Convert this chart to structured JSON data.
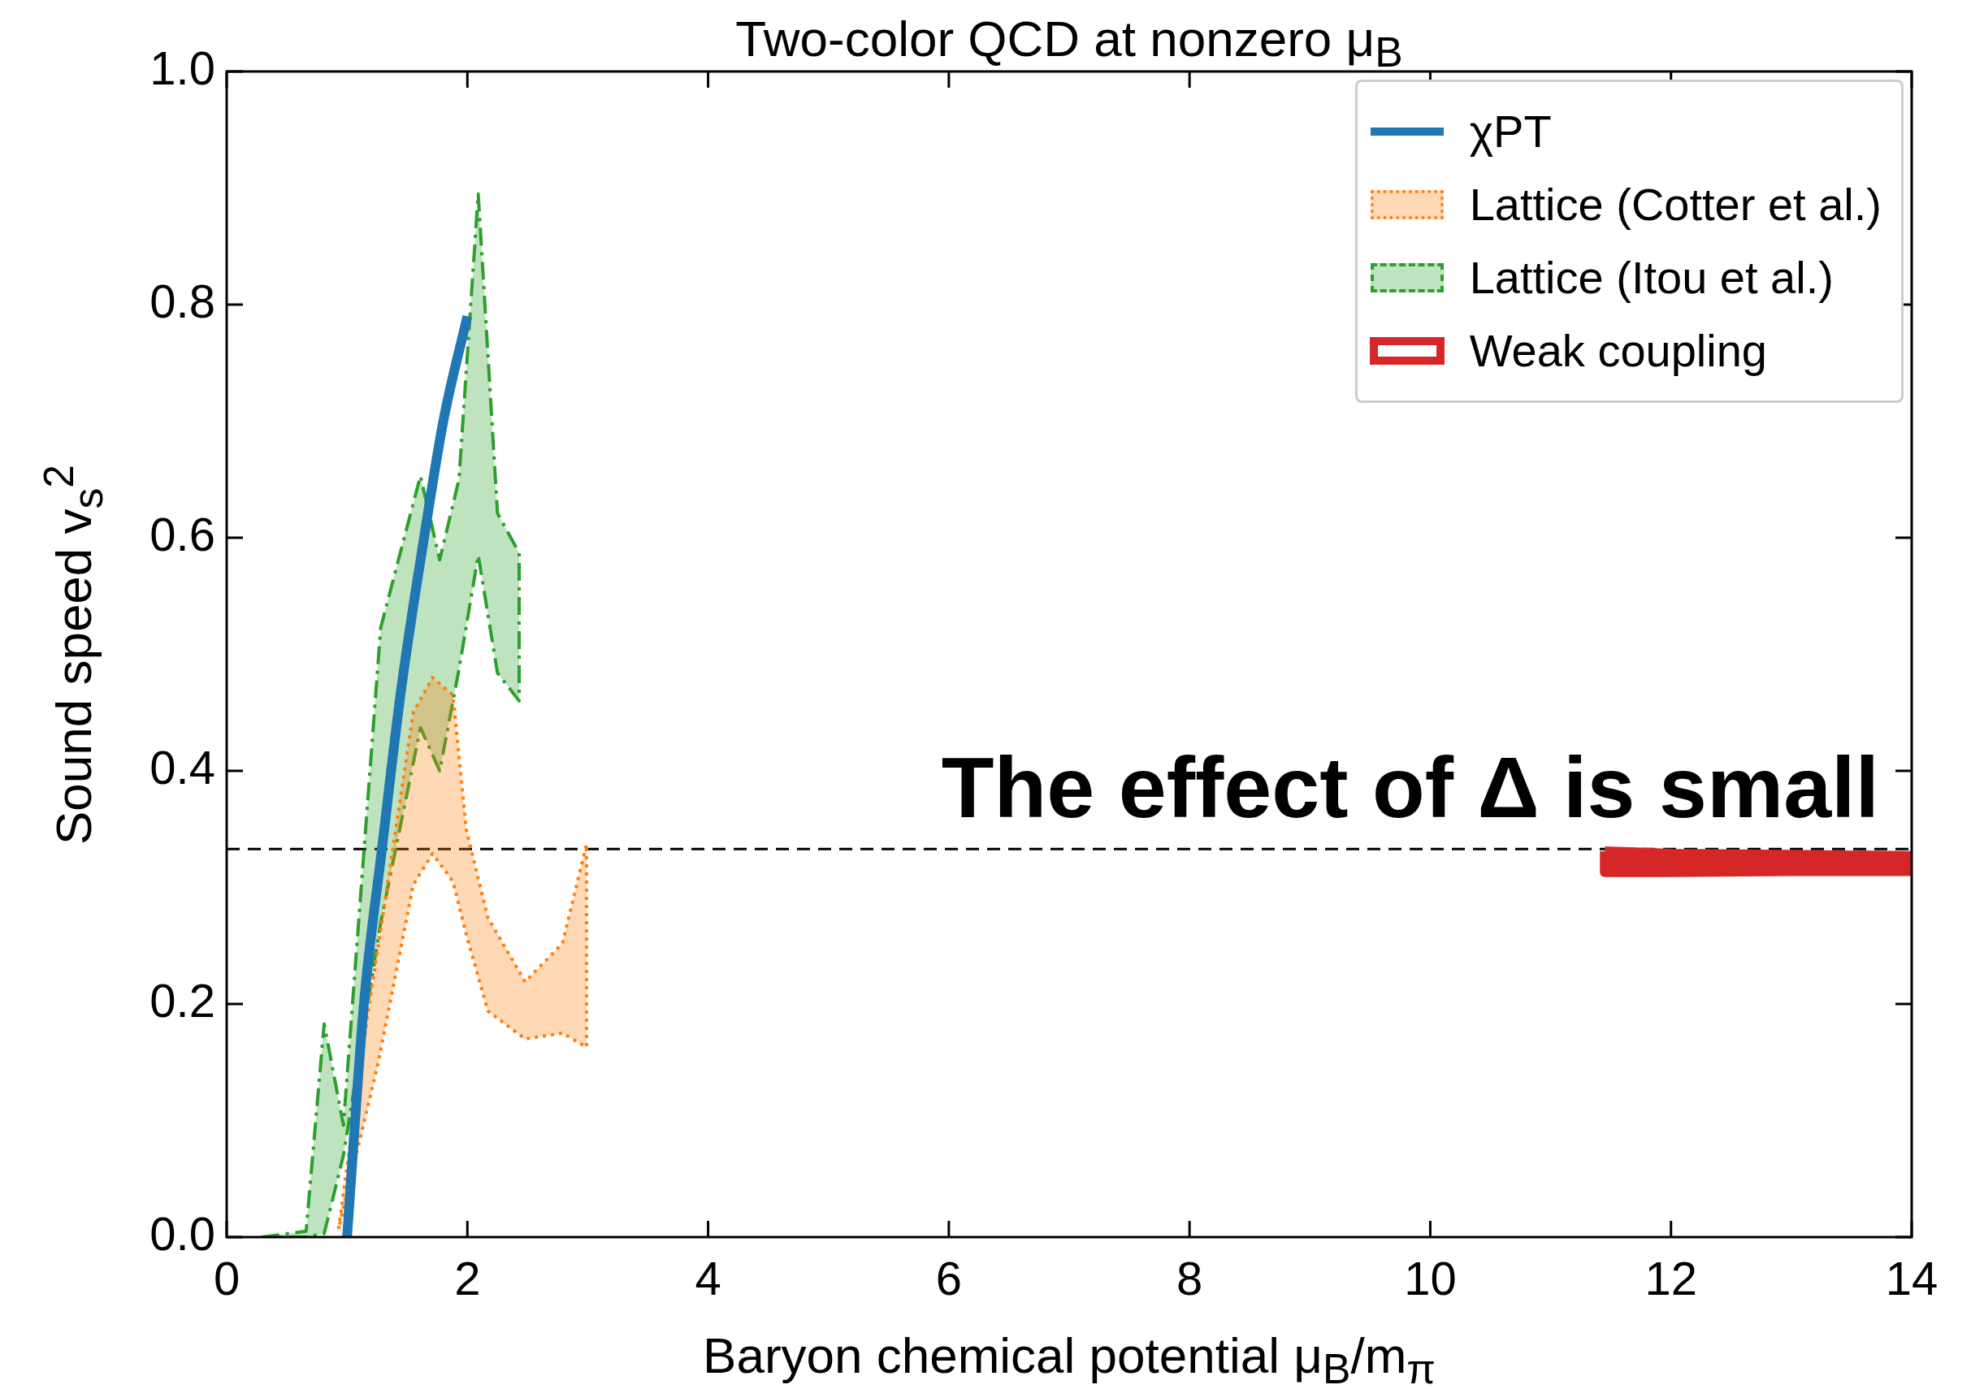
{
  "chart_data": {
    "type": "line",
    "title": "Two-color QCD at nonzero μ$_{B}$",
    "xlabel": "Baryon chemical potential μ$_{B}$/m$_{π}$",
    "ylabel": "Sound speed v$_{s}$$^{2}$",
    "xlim": [
      0,
      14
    ],
    "xticks": [
      0,
      2,
      4,
      6,
      8,
      10,
      12,
      14
    ],
    "ylim": [
      0,
      1
    ],
    "yticks": [
      {
        "value": 0,
        "label": "0.0"
      },
      {
        "value": 0.2,
        "label": "0.2"
      },
      {
        "value": 0.4,
        "label": "0.4"
      },
      {
        "value": 0.6,
        "label": "0.6"
      },
      {
        "value": 0.8,
        "label": "0.8"
      },
      {
        "value": 1,
        "label": "1.0"
      }
    ],
    "grid": false,
    "legend": "top right",
    "marker": "none",
    "series": [
      {
        "name": "χPT",
        "color": "#1f77b4",
        "line_style": "solid",
        "x": [
          1.0,
          1.14,
          1.29,
          1.45,
          1.64,
          1.8,
          2.0
        ],
        "values": [
          0,
          0.2,
          0.333,
          0.47,
          0.6,
          0.7,
          0.79
        ]
      },
      {
        "name": "Lattice (Cotter et al.)",
        "type": "area",
        "color": "#ff7f0e",
        "line_style": "dotted",
        "x": [
          0.93,
          1.17,
          1.26,
          1.55,
          1.71,
          1.88,
          1.99,
          2.17,
          2.48,
          2.79,
          2.99
        ],
        "values": [
          null,
          null,
          null,
          null,
          null,
          null,
          null,
          null,
          null,
          null,
          null
        ],
        "upper": [
          0.007,
          0.19,
          0.25,
          0.45,
          0.48,
          0.465,
          0.35,
          0.274,
          0.219,
          0.252,
          0.337
        ],
        "lower": [
          0.007,
          0.111,
          0.15,
          0.302,
          0.329,
          0.305,
          0.26,
          0.194,
          0.17,
          0.175,
          0.163
        ]
      },
      {
        "name": "Lattice (Itou et al.)",
        "type": "area",
        "color": "#2ca02c",
        "line_style": "dashed",
        "x": [
          0.29,
          0.66,
          0.81,
          0.97,
          1.28,
          1.61,
          1.77,
          1.93,
          2.09,
          2.25,
          2.43
        ],
        "values": [
          null,
          null,
          null,
          null,
          null,
          null,
          null,
          null,
          null,
          null,
          null
        ],
        "upper": [
          0,
          0.005,
          0.183,
          0.096,
          0.523,
          0.653,
          0.581,
          0.65,
          0.895,
          0.621,
          0.587
        ],
        "lower": [
          0,
          0,
          0.003,
          0.07,
          0.27,
          0.437,
          0.4,
          0.487,
          0.585,
          0.484,
          0.46
        ]
      },
      {
        "name": "Weak coupling",
        "type": "area",
        "color": "#d62728",
        "line_style": "solid",
        "x": [
          11.45,
          12,
          13,
          14
        ],
        "values": [
          null,
          null,
          null,
          null
        ],
        "upper": [
          0.331,
          0.329,
          0.328,
          0.327
        ],
        "lower": [
          0.313,
          0.313,
          0.314,
          0.314
        ]
      }
    ],
    "ref_lines": [
      {
        "axis": "y",
        "value": 0.333,
        "color": "#000000",
        "line_style": "dashed"
      }
    ],
    "annotations": [
      "The effect of Δ is small"
    ]
  }
}
